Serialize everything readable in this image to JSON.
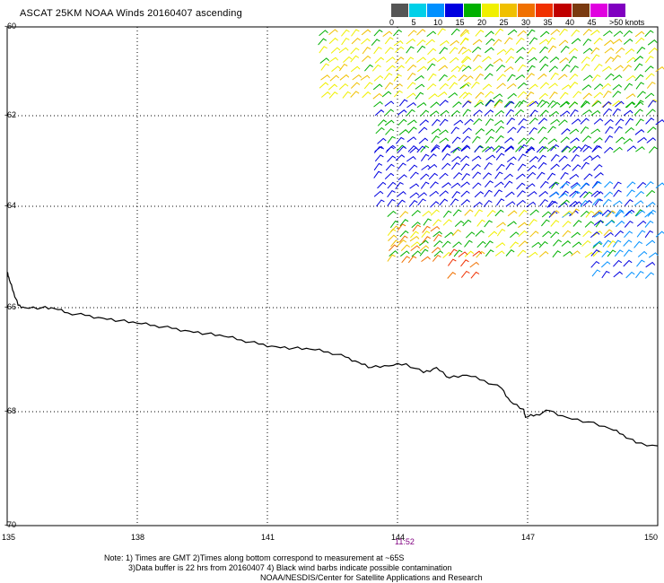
{
  "title": "ASCAT 25KM NOAA Winds 20160407 ascending",
  "legend": {
    "colors": [
      "#555555",
      "#00d0e8",
      "#0090ff",
      "#0000e0",
      "#00b000",
      "#f0f000",
      "#f0c000",
      "#f07000",
      "#f03000",
      "#c00000",
      "#7a3a10",
      "#e000e0",
      "#8000c0"
    ],
    "labels": [
      "0",
      "5",
      "10",
      "15",
      "20",
      "25",
      "30",
      "35",
      "40",
      "45",
      ">50 knots"
    ]
  },
  "lat_labels": [
    "-60",
    "-62",
    "-64",
    "-66",
    "-68",
    "-70"
  ],
  "lon_labels": [
    "135",
    "138",
    "141",
    "144",
    "147",
    "150"
  ],
  "time_label": "11:52",
  "notes": {
    "line1": "Note: 1) Times are GMT 2)Times along bottom correspond to measurement at ~65S",
    "line2": "3)Data buffer is 22 hrs from 20160407 4) Black wind barbs indicate possible contamination",
    "line3": "NOAA/NESDIS/Center for Satellite Applications and Research"
  },
  "map_data": {
    "lat_range": [
      -70,
      -60
    ],
    "lon_range": [
      135,
      150
    ],
    "coastline": [
      [
        -65.3,
        135.0
      ],
      [
        -65.45,
        135.05
      ],
      [
        -65.7,
        135.15
      ],
      [
        -65.95,
        135.25
      ],
      [
        -66.0,
        135.4
      ],
      [
        -66.0,
        135.8
      ],
      [
        -66.02,
        136.1
      ],
      [
        -66.1,
        136.4
      ],
      [
        -66.15,
        136.8
      ],
      [
        -66.2,
        137.2
      ],
      [
        -66.25,
        137.6
      ],
      [
        -66.3,
        138.0
      ],
      [
        -66.34,
        138.4
      ],
      [
        -66.4,
        138.8
      ],
      [
        -66.45,
        139.2
      ],
      [
        -66.5,
        139.6
      ],
      [
        -66.55,
        140.0
      ],
      [
        -66.62,
        140.4
      ],
      [
        -66.7,
        140.8
      ],
      [
        -66.75,
        141.2
      ],
      [
        -66.78,
        141.6
      ],
      [
        -66.8,
        142.0
      ],
      [
        -66.85,
        142.4
      ],
      [
        -66.95,
        142.8
      ],
      [
        -67.05,
        143.1
      ],
      [
        -67.15,
        143.4
      ],
      [
        -67.12,
        143.8
      ],
      [
        -67.08,
        144.2
      ],
      [
        -67.25,
        144.6
      ],
      [
        -67.15,
        144.9
      ],
      [
        -67.35,
        145.2
      ],
      [
        -67.3,
        145.6
      ],
      [
        -67.4,
        146.0
      ],
      [
        -67.55,
        146.4
      ],
      [
        -67.8,
        146.6
      ],
      [
        -67.95,
        146.9
      ],
      [
        -68.1,
        146.95
      ],
      [
        -68.05,
        147.2
      ],
      [
        -67.98,
        147.5
      ],
      [
        -68.1,
        147.9
      ],
      [
        -68.18,
        148.4
      ],
      [
        -68.3,
        148.9
      ],
      [
        -68.4,
        149.2
      ],
      [
        -68.55,
        149.5
      ],
      [
        -68.6,
        150.0
      ]
    ],
    "wind_regions": [
      {
        "lat": [
          -60.0,
          -61.8
        ],
        "lon": [
          142.2,
          145.5
        ],
        "speeds": [
          20,
          22,
          25,
          18,
          21
        ]
      },
      {
        "lat": [
          -60.2,
          -62.0
        ],
        "lon": [
          145.5,
          150.0
        ],
        "speeds": [
          15,
          18,
          22,
          25,
          20
        ]
      },
      {
        "lat": [
          -61.8,
          -63.0
        ],
        "lon": [
          143.5,
          150.0
        ],
        "speeds": [
          12,
          15,
          17,
          14,
          18
        ]
      },
      {
        "lat": [
          -62.8,
          -64.1
        ],
        "lon": [
          143.5,
          148.5
        ],
        "speeds": [
          10,
          12,
          13,
          11,
          14
        ]
      },
      {
        "lat": [
          -63.6,
          -64.3
        ],
        "lon": [
          147.5,
          150.0
        ],
        "speeds": [
          7,
          9,
          12,
          15
        ]
      },
      {
        "lat": [
          -64.2,
          -65.2
        ],
        "lon": [
          143.8,
          148.8
        ],
        "speeds": [
          18,
          20,
          22,
          25,
          16
        ]
      },
      {
        "lat": [
          -64.2,
          -65.5
        ],
        "lon": [
          148.5,
          150.0
        ],
        "speeds": [
          6,
          8,
          10
        ]
      },
      {
        "lat": [
          -64.5,
          -65.2
        ],
        "lon": [
          143.8,
          144.8
        ],
        "speeds": [
          28,
          30,
          32
        ]
      },
      {
        "lat": [
          -65.0,
          -65.4
        ],
        "lon": [
          145.2,
          145.8
        ],
        "speeds": [
          32,
          35
        ]
      }
    ]
  }
}
